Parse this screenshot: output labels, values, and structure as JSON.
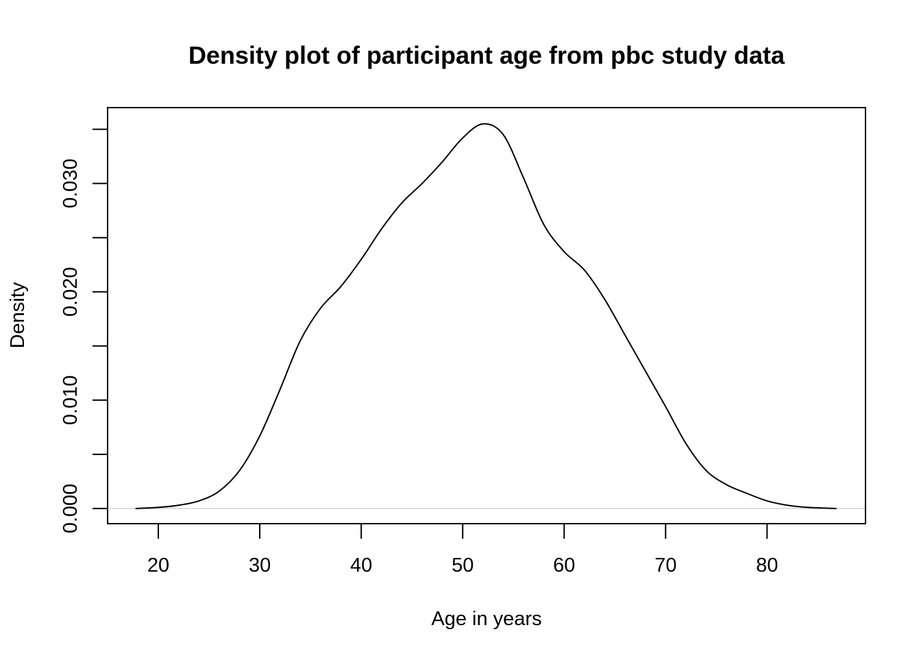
{
  "chart_data": {
    "type": "line",
    "title": "Density plot of participant age from pbc study data",
    "xlabel": "Age in years",
    "ylabel": "Density",
    "xlim": [
      15,
      89.7
    ],
    "ylim": [
      -0.0014,
      0.037
    ],
    "x_ticks": [
      {
        "value": 20,
        "label": "20"
      },
      {
        "value": 30,
        "label": "30"
      },
      {
        "value": 40,
        "label": "40"
      },
      {
        "value": 50,
        "label": "50"
      },
      {
        "value": 60,
        "label": "60"
      },
      {
        "value": 70,
        "label": "70"
      },
      {
        "value": 80,
        "label": "80"
      }
    ],
    "y_ticks": [
      {
        "value": 0.0,
        "label": "0.000"
      },
      {
        "value": 0.005,
        "label": ""
      },
      {
        "value": 0.01,
        "label": "0.010"
      },
      {
        "value": 0.015,
        "label": ""
      },
      {
        "value": 0.02,
        "label": "0.020"
      },
      {
        "value": 0.025,
        "label": ""
      },
      {
        "value": 0.03,
        "label": "0.030"
      },
      {
        "value": 0.035,
        "label": ""
      }
    ],
    "baseline": {
      "y": 0,
      "color": "#cccccc"
    },
    "grid": false,
    "series": [
      {
        "color": "#000000",
        "x": [
          17.8,
          20,
          22,
          24,
          26,
          28,
          30,
          32,
          34,
          36,
          38,
          40,
          42,
          44,
          46,
          48,
          50,
          52,
          54,
          56,
          58,
          60,
          62,
          64,
          66,
          68,
          70,
          72,
          74,
          76,
          78,
          80,
          82,
          84,
          86.8
        ],
        "y": [
          0.0,
          0.0001,
          0.0003,
          0.0007,
          0.0016,
          0.0035,
          0.0067,
          0.011,
          0.0155,
          0.0185,
          0.0205,
          0.023,
          0.0258,
          0.0282,
          0.03,
          0.032,
          0.0342,
          0.0355,
          0.0345,
          0.0305,
          0.0262,
          0.0237,
          0.022,
          0.0193,
          0.016,
          0.0127,
          0.0094,
          0.006,
          0.0035,
          0.0022,
          0.0014,
          0.0007,
          0.0003,
          0.0001,
          0.0
        ]
      }
    ]
  }
}
